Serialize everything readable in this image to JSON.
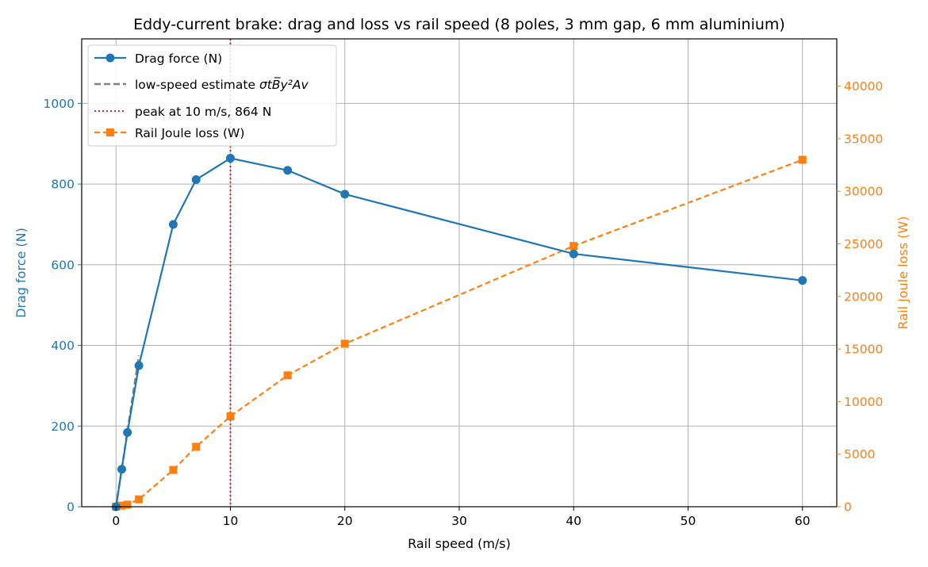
{
  "chart_data": {
    "type": "line",
    "title": "Eddy-current brake: drag and loss vs rail speed (8 poles, 3 mm gap, 6 mm aluminium)",
    "xlabel": "Rail speed (m/s)",
    "ylabel_left": "Drag force (N)",
    "ylabel_right": "Rail Joule loss (W)",
    "xlim": [
      -3,
      63
    ],
    "ylim_left": [
      0,
      1160
    ],
    "ylim_right": [
      0,
      44500
    ],
    "x_ticks": [
      0,
      10,
      20,
      30,
      40,
      50,
      60
    ],
    "y_left_ticks": [
      0,
      200,
      400,
      600,
      800,
      1000
    ],
    "y_right_ticks": [
      0,
      5000,
      10000,
      15000,
      20000,
      25000,
      30000,
      35000,
      40000
    ],
    "grid": true,
    "legend_position": "top-left",
    "colors": {
      "drag": "#1f77b4",
      "loss": "#ff7f0e",
      "estimate": "#808080",
      "peak": "#d62728"
    },
    "series": [
      {
        "name": "Drag force (N)",
        "axis": "left",
        "style": "solid-circle",
        "x": [
          0,
          0.5,
          1,
          2,
          5,
          7,
          10,
          15,
          20,
          40,
          60
        ],
        "y": [
          0,
          93,
          184,
          350,
          700,
          811,
          864,
          834,
          775,
          627,
          561
        ]
      },
      {
        "name": "low-speed estimate",
        "legend_prefix": "low-speed estimate ",
        "legend_formula": "σtB̅y²Av",
        "axis": "left",
        "style": "dashed",
        "x": [
          0,
          2
        ],
        "y": [
          0,
          375
        ]
      },
      {
        "name": "peak at 10 m/s, 864 N",
        "axis": "left",
        "style": "dotted-vertical",
        "x": [
          10,
          10
        ],
        "y": [
          0,
          1160
        ]
      },
      {
        "name": "Rail Joule loss (W)",
        "axis": "right",
        "style": "dashed-square",
        "x": [
          0,
          0.5,
          1,
          2,
          5,
          7,
          10,
          15,
          20,
          40,
          60
        ],
        "y": [
          0,
          100,
          200,
          700,
          3500,
          5700,
          8600,
          12500,
          15500,
          24800,
          33000
        ]
      }
    ]
  }
}
